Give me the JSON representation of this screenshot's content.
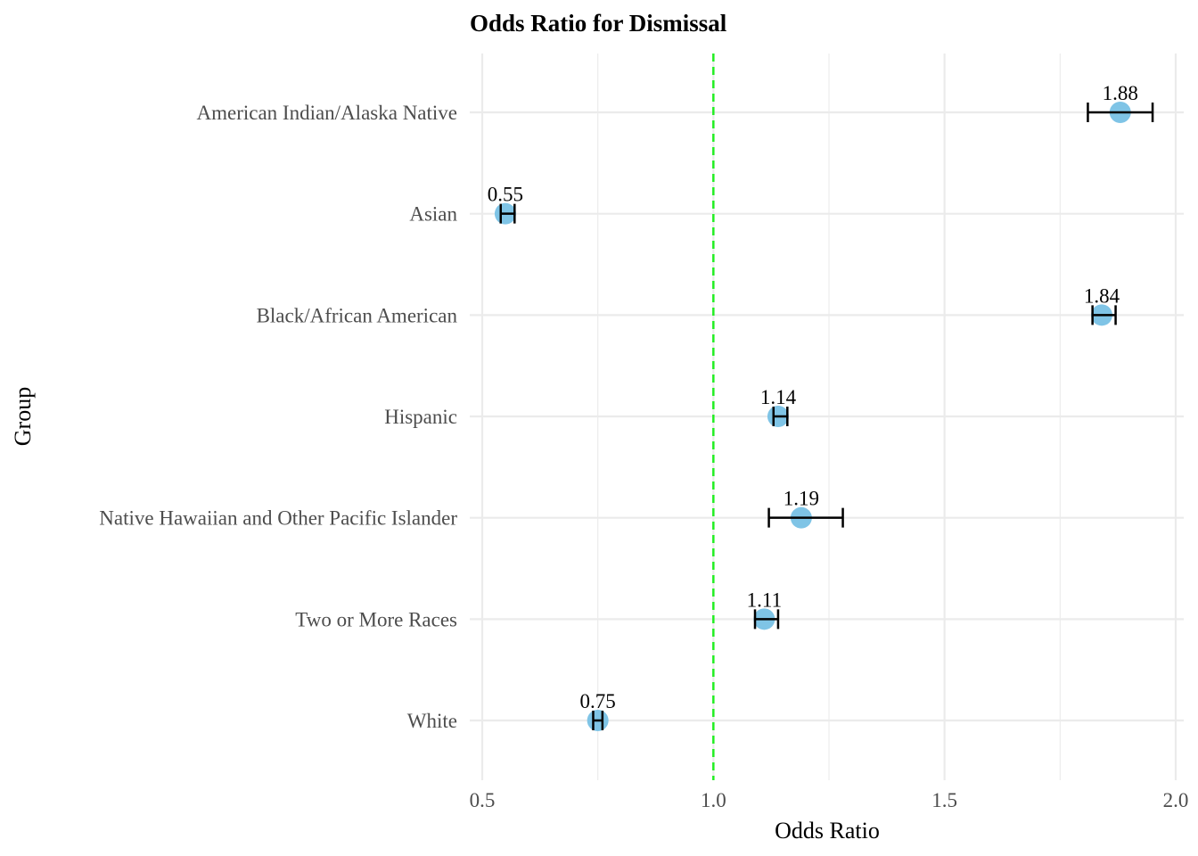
{
  "chart_data": {
    "type": "scatter",
    "title": "Odds Ratio for Dismissal",
    "xlabel": "Odds Ratio",
    "ylabel": "Group",
    "xlim": [
      0.5,
      2.0
    ],
    "xticks": [
      "0.5",
      "1.0",
      "1.5",
      "2.0"
    ],
    "reference_line": {
      "x": 1.0,
      "color": "#22ee22",
      "style": "dashed"
    },
    "point_color": "#7fc4e6",
    "grid": true,
    "categories": [
      "American Indian/Alaska Native",
      "Asian",
      "Black/African American",
      "Hispanic",
      "Native Hawaiian and Other Pacific Islander",
      "Two or More Races",
      "White"
    ],
    "values": [
      1.88,
      0.55,
      1.84,
      1.14,
      1.19,
      1.11,
      0.75
    ],
    "ci_lower": [
      1.81,
      0.54,
      1.82,
      1.13,
      1.12,
      1.09,
      0.74
    ],
    "ci_upper": [
      1.95,
      0.57,
      1.87,
      1.16,
      1.28,
      1.14,
      0.76
    ],
    "labels": [
      "1.88",
      "0.55",
      "1.84",
      "1.14",
      "1.19",
      "1.11",
      "0.75"
    ]
  }
}
